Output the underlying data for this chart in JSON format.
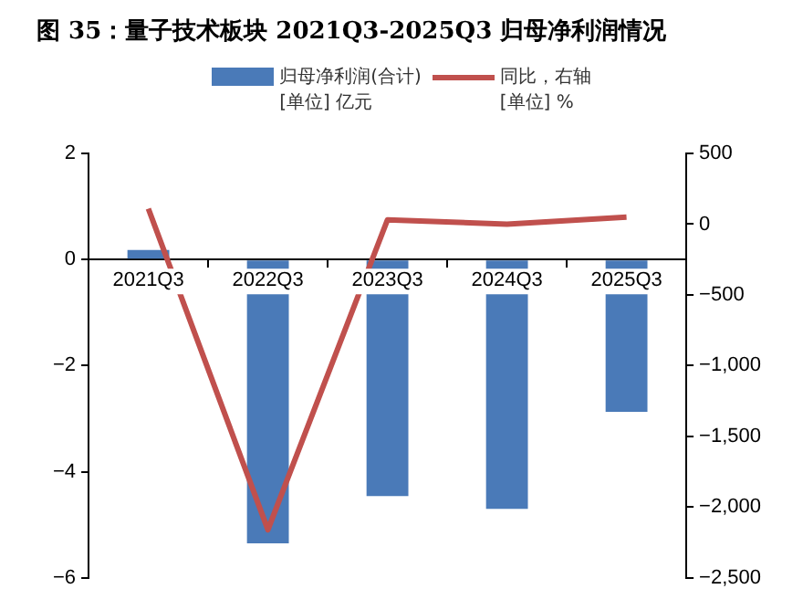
{
  "chart_data": {
    "type": "bar",
    "title": "图 35：量子技术板块 2021Q3-2025Q3 归母净利润情况",
    "categories": [
      "2021Q3",
      "2022Q3",
      "2023Q3",
      "2024Q3",
      "2025Q3"
    ],
    "series": [
      {
        "name": "归母净利润(合计)\n[单位] 亿元",
        "color": "#4a7ab8",
        "values": [
          0.18,
          -5.35,
          -4.46,
          -4.7,
          -2.87
        ]
      },
      {
        "name": "同比，右轴\n[单位] %",
        "type": "line",
        "axis": "y2",
        "color": "#c0504d",
        "values": [
          110,
          -2160,
          30,
          0,
          50
        ]
      }
    ],
    "ylim": [
      -6,
      2
    ],
    "yticks": [
      {
        "value": -6,
        "label": "−6"
      },
      {
        "value": -4,
        "label": "−4"
      },
      {
        "value": -2,
        "label": "−2"
      },
      0,
      2
    ],
    "y2lim": [
      -2500,
      500
    ],
    "y2ticks": [
      {
        "value": -2500,
        "label": "−2,500"
      },
      {
        "value": -2000,
        "label": "−2,000"
      },
      {
        "value": -1500,
        "label": "−1,500"
      },
      {
        "value": -1000,
        "label": "−1,000"
      },
      {
        "value": -500,
        "label": "−500"
      },
      0,
      500
    ],
    "grid": false,
    "legend": "top",
    "marker": "none",
    "line_style": "solid"
  }
}
